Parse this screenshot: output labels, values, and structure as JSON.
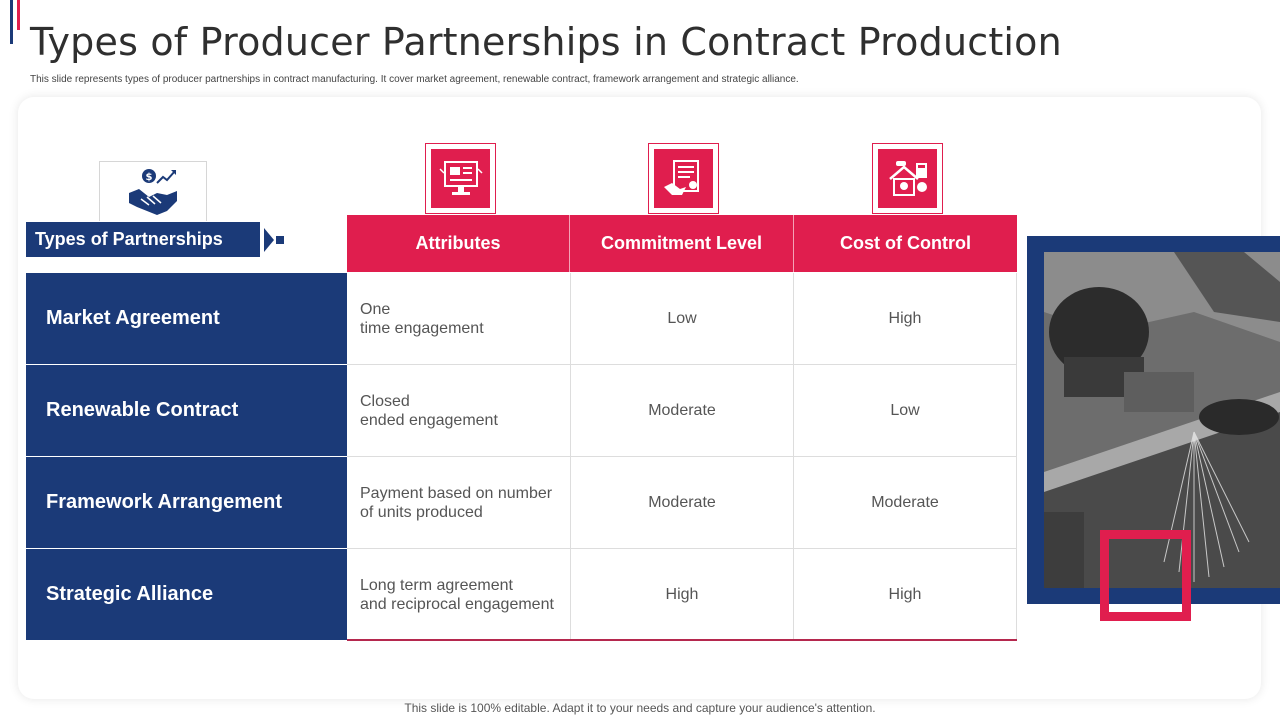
{
  "slide": {
    "title": "Types of Producer Partnerships in Contract Production",
    "subtitle": "This slide represents types of producer partnerships in contract manufacturing. It cover market agreement, renewable contract, framework arrangement and strategic alliance.",
    "footer": "This slide is 100% editable. Adapt it to your needs and capture your audience's attention."
  },
  "table": {
    "row_header_label": "Types of Partnerships",
    "columns": [
      {
        "label": "Attributes",
        "icon": "presentation-monitor-icon"
      },
      {
        "label": "Commitment Level",
        "icon": "contract-handshake-icon"
      },
      {
        "label": "Cost of Control",
        "icon": "house-calculator-icon"
      }
    ],
    "rows": [
      {
        "label": "Market Agreement",
        "attributes": [
          "One",
          "time engagement"
        ],
        "commitment": "Low",
        "cost": "High"
      },
      {
        "label": "Renewable Contract",
        "attributes": [
          "Closed",
          "ended engagement"
        ],
        "commitment": "Moderate",
        "cost": "Low"
      },
      {
        "label": "Framework Arrangement",
        "attributes": [
          "Payment based on number",
          "of units produced"
        ],
        "commitment": "Moderate",
        "cost": "Moderate"
      },
      {
        "label": "Strategic Alliance",
        "attributes": [
          "Long term agreement",
          "and reciprocal engagement"
        ],
        "commitment": "High",
        "cost": "High"
      }
    ]
  },
  "colors": {
    "navy": "#1b3a78",
    "red": "#e01e4e"
  },
  "header_icon": "handshake-dollar-icon",
  "photo": "welding-sparks-photo"
}
